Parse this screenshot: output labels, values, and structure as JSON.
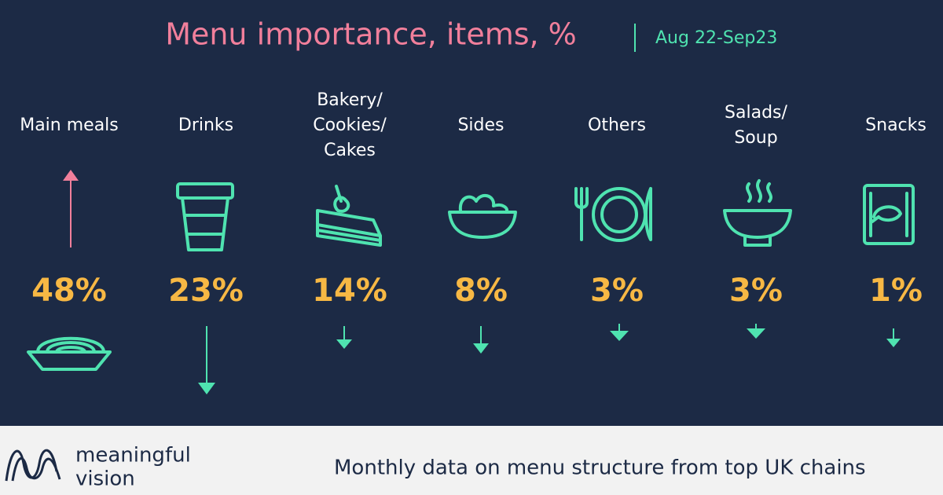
{
  "header": {
    "title": "Menu importance, items, %",
    "period": "Aug 22-Sep23"
  },
  "items": [
    {
      "label": [
        "Main meals"
      ],
      "value": "48%"
    },
    {
      "label": [
        "Drinks"
      ],
      "value": "23%"
    },
    {
      "label": [
        "Bakery/",
        "Cookies/",
        "Cakes"
      ],
      "value": "14%"
    },
    {
      "label": [
        "Sides"
      ],
      "value": "8%"
    },
    {
      "label": [
        "Others"
      ],
      "value": "3%"
    },
    {
      "label": [
        "Salads/",
        "Soup"
      ],
      "value": "3%"
    },
    {
      "label": [
        "Snacks"
      ],
      "value": "1%"
    }
  ],
  "footer": {
    "brand": [
      "meaningful",
      "vision"
    ],
    "tagline": "Monthly data on menu structure from top UK chains"
  }
}
